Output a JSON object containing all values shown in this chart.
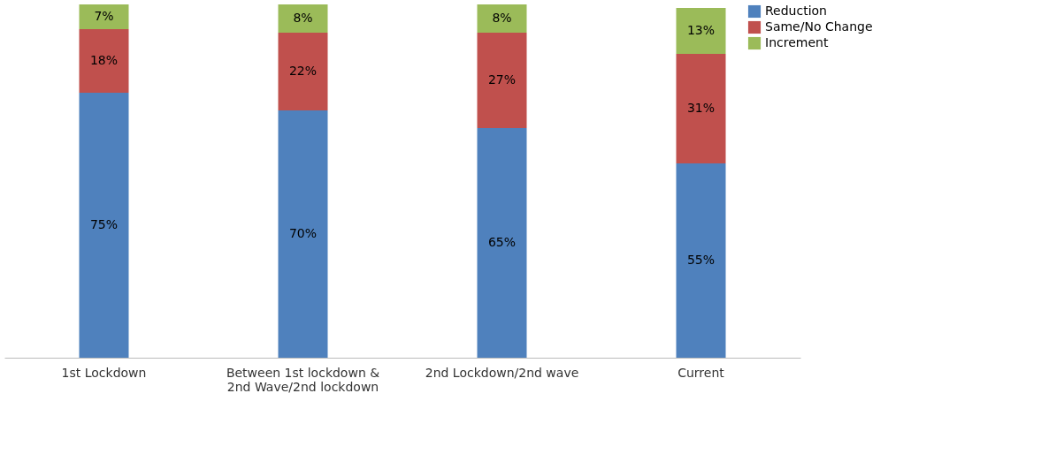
{
  "chart_data": {
    "type": "bar",
    "stacked": true,
    "legend": "right",
    "grid": false,
    "categories": [
      "1st Lockdown",
      "Between 1st lockdown &\n2nd Wave/2nd lockdown",
      "2nd Lockdown/2nd wave",
      "Current"
    ],
    "series": [
      {
        "name": "Reduction",
        "color": "#4f81bd",
        "values": [
          75,
          70,
          65,
          55
        ],
        "value_labels": [
          "75%",
          "70%",
          "65%",
          "55%"
        ]
      },
      {
        "name": "Same/No Change",
        "color": "#c0504d",
        "values": [
          18,
          22,
          27,
          31
        ],
        "value_labels": [
          "18%",
          "22%",
          "27%",
          "31%"
        ]
      },
      {
        "name": "Increment",
        "color": "#9bbb59",
        "values": [
          7,
          8,
          8,
          13
        ],
        "value_labels": [
          "7%",
          "8%",
          "8%",
          "13%"
        ]
      }
    ]
  }
}
